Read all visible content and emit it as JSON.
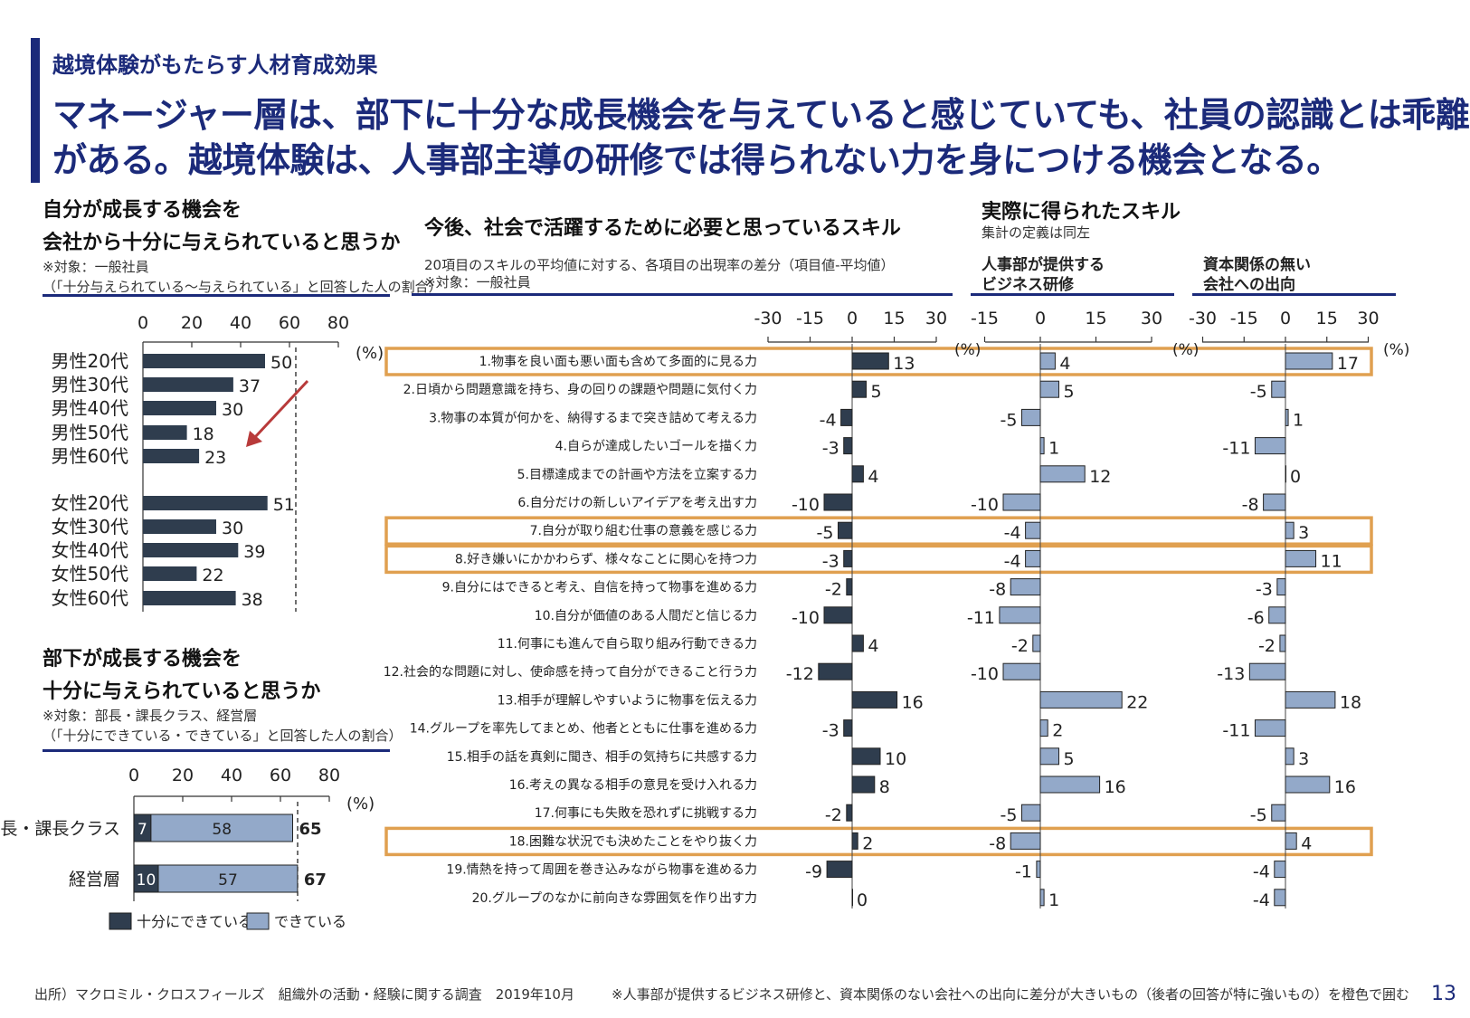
{
  "header": {
    "subtitle": "越境体験がもたらす人材育成効果",
    "headline_line1": "マネージャー層は、部下に十分な成長機会を与えていると感じていても、社員の認識とは乖離",
    "headline_line2": "がある。越境体験は、人事部主導の研修では得られない力を身につける機会となる。"
  },
  "panel_growth": {
    "title_line1": "自分が成長する機会を",
    "title_line2": "会社から十分に与えられていると思うか",
    "note_line1": "※対象：一般社員",
    "note_line2": "（「十分与えられている～与えられている」と回答した人の割合）"
  },
  "panel_subordinate": {
    "title_line1": "部下が成長する機会を",
    "title_line2": "十分に与えられていると思うか",
    "note_line1": "※対象：部長・課長クラス、経営層",
    "note_line2": "（「十分にできている・できている」と回答した人の割合）"
  },
  "panel_skills": {
    "title": "今後、社会で活躍するために必要と思っているスキル",
    "note_line1": "20項目のスキルの平均値に対する、各項目の出現率の差分（項目値-平均値）",
    "note_line2": "※対象：一般社員"
  },
  "panel_acquired": {
    "title": "実際に得られたスキル",
    "note": "集計の定義は同左",
    "col1_line1": "人事部が提供する",
    "col1_line2": "ビジネス研修",
    "col2_line1": "資本関係の無い",
    "col2_line2": "会社への出向"
  },
  "footer": {
    "source": "出所）マクロミル・クロスフィールズ　組織外の活動・経験に関する調査　2019年10月",
    "note": "※人事部が提供するビジネス研修と、資本関係のない会社への出向に差分が大きいもの（後者の回答が特に強いもの）を橙色で囲む",
    "page_number": "13"
  },
  "colors": {
    "dark_bar": "#2f3d4e",
    "light_bar": "#93a9c9",
    "highlight": "#e0a050",
    "brand": "#1b2a7a",
    "arrow": "#b83a3a"
  },
  "chart_data": [
    {
      "id": "growth-opportunity",
      "type": "bar",
      "orientation": "horizontal",
      "unit": "(%)",
      "xlim": [
        0,
        80
      ],
      "ticks": [
        0,
        20,
        40,
        60,
        80
      ],
      "categories": [
        "男性20代",
        "男性30代",
        "男性40代",
        "男性50代",
        "男性60代",
        "女性20代",
        "女性30代",
        "女性40代",
        "女性50代",
        "女性60代"
      ],
      "values": [
        50,
        37,
        30,
        18,
        23,
        51,
        30,
        39,
        22,
        38
      ]
    },
    {
      "id": "subordinate-opportunity",
      "type": "bar",
      "orientation": "horizontal",
      "stacked": true,
      "unit": "(%)",
      "xlim": [
        0,
        80
      ],
      "ticks": [
        0,
        20,
        40,
        60,
        80
      ],
      "categories": [
        "部長・課長クラス",
        "経営層"
      ],
      "series": [
        {
          "name": "十分にできている",
          "values": [
            7,
            10
          ]
        },
        {
          "name": "できている",
          "values": [
            58,
            57
          ]
        }
      ],
      "totals": [
        65,
        67
      ]
    },
    {
      "id": "skills-diff",
      "type": "bar",
      "orientation": "horizontal",
      "unit": "(%)",
      "categories": [
        "1.物事を良い面も悪い面も含めて多面的に見る力",
        "2.日頃から問題意識を持ち、身の回りの課題や問題に気付く力",
        "3.物事の本質が何かを、納得するまで突き詰めて考える力",
        "4.自らが達成したいゴールを描く力",
        "5.目標達成までの計画や方法を立案する力",
        "6.自分だけの新しいアイデアを考え出す力",
        "7.自分が取り組む仕事の意義を感じる力",
        "8.好き嫌いにかかわらず、様々なことに関心を持つ力",
        "9.自分にはできると考え、自信を持って物事を進める力",
        "10.自分が価値のある人間だと信じる力",
        "11.何事にも進んで自ら取り組み行動できる力",
        "12.社会的な問題に対し、使命感を持って自分ができること行う力",
        "13.相手が理解しやすいように物事を伝える力",
        "14.グループを率先してまとめ、他者とともに仕事を進める力",
        "15.相手の話を真剣に聞き、相手の気持ちに共感する力",
        "16.考えの異なる相手の意見を受け入れる力",
        "17.何事にも失敗を恐れずに挑戦する力",
        "18.困難な状況でも決めたことをやり抜く力",
        "19.情熱を持って周囲を巻き込みながら物事を進める力",
        "20.グループのなかに前向きな雰囲気を作り出す力"
      ],
      "highlighted_rows": [
        1,
        7,
        8,
        18
      ],
      "series": [
        {
          "name": "今後、社会で活躍するために必要と思っているスキル",
          "xlim": [
            -30,
            30
          ],
          "ticks": [
            -30,
            -15,
            0,
            15,
            30
          ],
          "values": [
            13,
            5,
            -4,
            -3,
            4,
            -10,
            -5,
            -3,
            -2,
            -10,
            4,
            -12,
            16,
            -3,
            10,
            8,
            -2,
            2,
            -9,
            0
          ]
        },
        {
          "name": "人事部が提供するビジネス研修",
          "xlim": [
            -15,
            30
          ],
          "ticks": [
            -15,
            0,
            15,
            30
          ],
          "values": [
            4,
            5,
            -5,
            1,
            12,
            -10,
            -4,
            -4,
            -8,
            -11,
            -2,
            -10,
            22,
            2,
            5,
            16,
            -5,
            -8,
            -1,
            1
          ]
        },
        {
          "name": "資本関係の無い会社への出向",
          "xlim": [
            -30,
            30
          ],
          "ticks": [
            -30,
            -15,
            0,
            15,
            30
          ],
          "values": [
            17,
            -5,
            1,
            -11,
            0,
            -8,
            3,
            11,
            -3,
            -6,
            -2,
            -13,
            18,
            -11,
            3,
            16,
            -5,
            4,
            -4,
            -4
          ]
        }
      ]
    }
  ]
}
